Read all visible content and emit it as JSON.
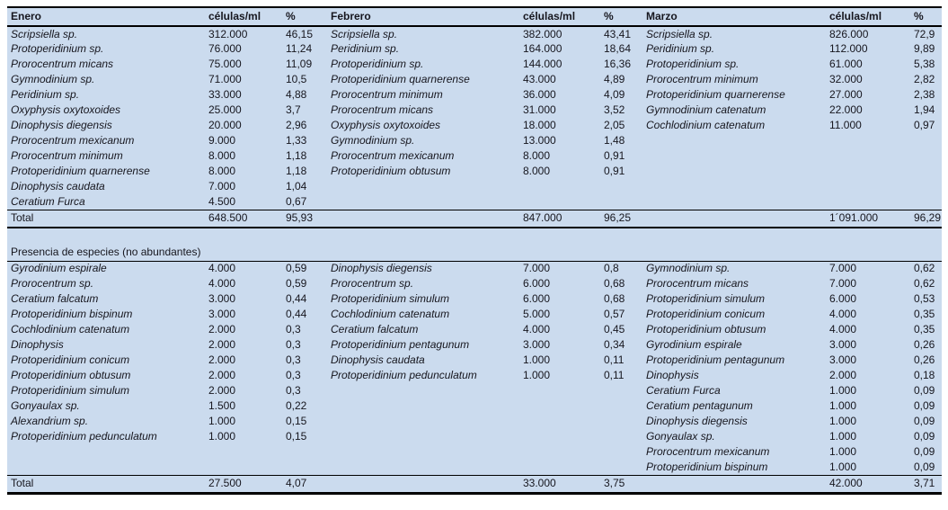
{
  "table": {
    "colors": {
      "background": "#cbdbee",
      "text": "#16161e",
      "rule": "#000000"
    },
    "total_label": "Total",
    "section2_title": "Presencia de especies (no abundantes)",
    "columns": {
      "cells": "células/ml",
      "pct": "%"
    },
    "months": [
      {
        "name": "Enero",
        "abundant": [
          {
            "species": "Scripsiella sp.",
            "cells": "312.000",
            "pct": "46,15"
          },
          {
            "species": "Protoperidinium sp.",
            "cells": "76.000",
            "pct": "11,24"
          },
          {
            "species": "Prorocentrum micans",
            "cells": "75.000",
            "pct": "11,09"
          },
          {
            "species": "Gymnodinium sp.",
            "cells": "71.000",
            "pct": "10,5"
          },
          {
            "species": "Peridinium sp.",
            "cells": "33.000",
            "pct": "4,88"
          },
          {
            "species": "Oxyphysis oxytoxoides",
            "cells": "25.000",
            "pct": "3,7"
          },
          {
            "species": "Dinophysis diegensis",
            "cells": "20.000",
            "pct": "2,96"
          },
          {
            "species": "Prorocentrum mexicanum",
            "cells": "9.000",
            "pct": "1,33"
          },
          {
            "species": "Prorocentrum minimum",
            "cells": "8.000",
            "pct": "1,18"
          },
          {
            "species": "Protoperidinium quarnerense",
            "cells": "8.000",
            "pct": "1,18"
          },
          {
            "species": "Dinophysis caudata",
            "cells": "7.000",
            "pct": "1,04"
          },
          {
            "species": "Ceratium Furca",
            "cells": "4.500",
            "pct": "0,67"
          }
        ],
        "abundant_total": {
          "cells": "648.500",
          "pct": "95,93"
        },
        "rare": [
          {
            "species": "Gyrodinium espirale",
            "cells": "4.000",
            "pct": "0,59"
          },
          {
            "species": "Prorocentrum sp.",
            "cells": "4.000",
            "pct": "0,59"
          },
          {
            "species": "Ceratium falcatum",
            "cells": "3.000",
            "pct": "0,44"
          },
          {
            "species": "Protoperidinium bispinum",
            "cells": "3.000",
            "pct": "0,44"
          },
          {
            "species": "Cochlodinium catenatum",
            "cells": "2.000",
            "pct": "0,3"
          },
          {
            "species": "Dinophysis",
            "cells": "2.000",
            "pct": "0,3"
          },
          {
            "species": "Protoperidinium conicum",
            "cells": "2.000",
            "pct": "0,3"
          },
          {
            "species": "Protoperidinium obtusum",
            "cells": "2.000",
            "pct": "0,3"
          },
          {
            "species": "Protoperidinium simulum",
            "cells": "2.000",
            "pct": "0,3"
          },
          {
            "species": "Gonyaulax sp.",
            "cells": "1.500",
            "pct": "0,22"
          },
          {
            "species": "Alexandrium sp.",
            "cells": "1.000",
            "pct": "0,15"
          },
          {
            "species": "Protoperidinium pedunculatum",
            "cells": "1.000",
            "pct": "0,15"
          }
        ],
        "rare_total": {
          "cells": "27.500",
          "pct": "4,07"
        }
      },
      {
        "name": "Febrero",
        "abundant": [
          {
            "species": "Scripsiella sp.",
            "cells": "382.000",
            "pct": "43,41"
          },
          {
            "species": "Peridinium sp.",
            "cells": "164.000",
            "pct": "18,64"
          },
          {
            "species": "Protoperidinium sp.",
            "cells": "144.000",
            "pct": "16,36"
          },
          {
            "species": "Protoperidinium quarnerense",
            "cells": "43.000",
            "pct": "4,89"
          },
          {
            "species": "Prorocentrum minimum",
            "cells": "36.000",
            "pct": "4,09"
          },
          {
            "species": "Prorocentrum micans",
            "cells": "31.000",
            "pct": "3,52"
          },
          {
            "species": "Oxyphysis oxytoxoides",
            "cells": "18.000",
            "pct": "2,05"
          },
          {
            "species": "Gymnodinium sp.",
            "cells": "13.000",
            "pct": "1,48"
          },
          {
            "species": "Prorocentrum mexicanum",
            "cells": "8.000",
            "pct": "0,91"
          },
          {
            "species": "Protoperidinium obtusum",
            "cells": "8.000",
            "pct": "0,91"
          }
        ],
        "abundant_total": {
          "cells": "847.000",
          "pct": "96,25"
        },
        "rare": [
          {
            "species": "Dinophysis diegensis",
            "cells": "7.000",
            "pct": "0,8"
          },
          {
            "species": "Prorocentrum sp.",
            "cells": "6.000",
            "pct": "0,68"
          },
          {
            "species": "Protoperidinium simulum",
            "cells": "6.000",
            "pct": "0,68"
          },
          {
            "species": "Cochlodinium catenatum",
            "cells": "5.000",
            "pct": "0,57"
          },
          {
            "species": "Ceratium falcatum",
            "cells": "4.000",
            "pct": "0,45"
          },
          {
            "species": "Protoperidinium pentagunum",
            "cells": "3.000",
            "pct": "0,34"
          },
          {
            "species": "Dinophysis caudata",
            "cells": "1.000",
            "pct": "0,11"
          },
          {
            "species": "Protoperidinium pedunculatum",
            "cells": "1.000",
            "pct": "0,11"
          }
        ],
        "rare_total": {
          "cells": "33.000",
          "pct": "3,75"
        }
      },
      {
        "name": "Marzo",
        "abundant": [
          {
            "species": "Scripsiella sp.",
            "cells": "826.000",
            "pct": "72,9"
          },
          {
            "species": "Peridinium sp.",
            "cells": "112.000",
            "pct": "9,89"
          },
          {
            "species": "Protoperidinium sp.",
            "cells": "61.000",
            "pct": "5,38"
          },
          {
            "species": "Prorocentrum minimum",
            "cells": "32.000",
            "pct": "2,82"
          },
          {
            "species": "Protoperidinium quarnerense",
            "cells": "27.000",
            "pct": "2,38"
          },
          {
            "species": "Gymnodinium catenatum",
            "cells": "22.000",
            "pct": "1,94"
          },
          {
            "species": "Cochlodinium catenatum",
            "cells": "11.000",
            "pct": "0,97"
          }
        ],
        "abundant_total": {
          "cells": "1´091.000",
          "pct": "96,29"
        },
        "rare": [
          {
            "species": "Gymnodinium sp.",
            "cells": "7.000",
            "pct": "0,62"
          },
          {
            "species": "Prorocentrum micans",
            "cells": "7.000",
            "pct": "0,62"
          },
          {
            "species": "Protoperidinium simulum",
            "cells": "6.000",
            "pct": "0,53"
          },
          {
            "species": "Protoperidinium conicum",
            "cells": "4.000",
            "pct": "0,35"
          },
          {
            "species": "Protoperidinium obtusum",
            "cells": "4.000",
            "pct": "0,35"
          },
          {
            "species": "Gyrodinium espirale",
            "cells": "3.000",
            "pct": "0,26"
          },
          {
            "species": "Protoperidinium pentagunum",
            "cells": "3.000",
            "pct": "0,26"
          },
          {
            "species": "Dinophysis",
            "cells": "2.000",
            "pct": "0,18"
          },
          {
            "species": "Ceratium Furca",
            "cells": "1.000",
            "pct": "0,09"
          },
          {
            "species": "Ceratium pentagunum",
            "cells": "1.000",
            "pct": "0,09"
          },
          {
            "species": "Dinophysis diegensis",
            "cells": "1.000",
            "pct": "0,09"
          },
          {
            "species": "Gonyaulax sp.",
            "cells": "1.000",
            "pct": "0,09"
          },
          {
            "species": "Prorocentrum mexicanum",
            "cells": "1.000",
            "pct": "0,09"
          },
          {
            "species": "Protoperidinium bispinum",
            "cells": "1.000",
            "pct": "0,09"
          }
        ],
        "rare_total": {
          "cells": "42.000",
          "pct": "3,71"
        }
      }
    ]
  }
}
